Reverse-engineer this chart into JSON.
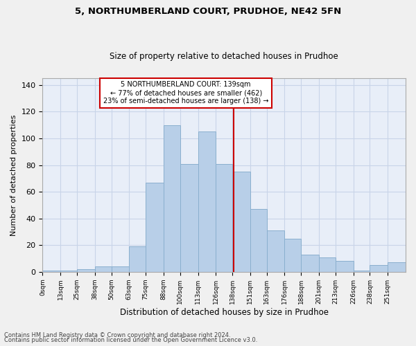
{
  "title1": "5, NORTHUMBERLAND COURT, PRUDHOE, NE42 5FN",
  "title2": "Size of property relative to detached houses in Prudhoe",
  "xlabel": "Distribution of detached houses by size in Prudhoe",
  "ylabel": "Number of detached properties",
  "bins": [
    0,
    13,
    25,
    38,
    50,
    63,
    75,
    88,
    100,
    113,
    126,
    138,
    151,
    163,
    176,
    188,
    201,
    213,
    226,
    238,
    251,
    264
  ],
  "bin_labels": [
    "0sqm",
    "13sqm",
    "25sqm",
    "38sqm",
    "50sqm",
    "63sqm",
    "75sqm",
    "88sqm",
    "100sqm",
    "113sqm",
    "126sqm",
    "138sqm",
    "151sqm",
    "163sqm",
    "176sqm",
    "188sqm",
    "201sqm",
    "213sqm",
    "226sqm",
    "238sqm",
    "251sqm"
  ],
  "values": [
    1,
    1,
    2,
    4,
    4,
    19,
    67,
    110,
    81,
    105,
    81,
    75,
    47,
    31,
    25,
    13,
    11,
    8,
    1,
    5,
    7
  ],
  "bar_color": "#b8cfe8",
  "bar_edge_color": "#8aafce",
  "vline_x": 139,
  "vline_color": "#cc0000",
  "annotation_text": "5 NORTHUMBERLAND COURT: 139sqm\n← 77% of detached houses are smaller (462)\n23% of semi-detached houses are larger (138) →",
  "annotation_box_color": "#ffffff",
  "annotation_box_edge": "#cc0000",
  "grid_color": "#c8d4e8",
  "bg_color": "#e8eef8",
  "fig_bg_color": "#f0f0f0",
  "footer1": "Contains HM Land Registry data © Crown copyright and database right 2024.",
  "footer2": "Contains public sector information licensed under the Open Government Licence v3.0.",
  "ylim": [
    0,
    145
  ],
  "yticks": [
    0,
    20,
    40,
    60,
    80,
    100,
    120,
    140
  ]
}
